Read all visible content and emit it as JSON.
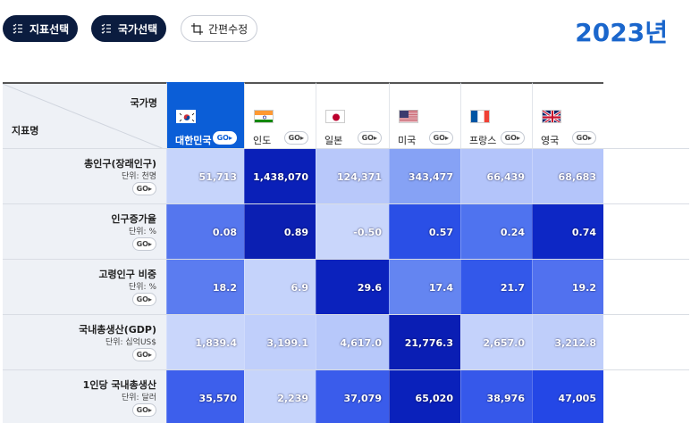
{
  "buttons": {
    "indicator": "지표선택",
    "country": "국가선택",
    "edit": "간편수정"
  },
  "year": "2023년",
  "header": {
    "country_label": "국가명",
    "indicator_label": "지표명"
  },
  "go_label": "GO",
  "countries": [
    {
      "name": "대한민국",
      "flag": "kr",
      "active": true
    },
    {
      "name": "인도",
      "flag": "in",
      "active": false
    },
    {
      "name": "일본",
      "flag": "jp",
      "active": false
    },
    {
      "name": "미국",
      "flag": "us",
      "active": false
    },
    {
      "name": "프랑스",
      "flag": "fr",
      "active": false
    },
    {
      "name": "영국",
      "flag": "gb",
      "active": false
    }
  ],
  "rows": [
    {
      "name": "총인구(장래인구)",
      "unit": "단위: 천명",
      "values": [
        "51,713",
        "1,438,070",
        "124,371",
        "343,477",
        "66,439",
        "68,683"
      ],
      "colors": [
        "#c6d4fb",
        "#0a20b8",
        "#b8c8fa",
        "#86a2f5",
        "#b3c4fa",
        "#b4c5fa"
      ]
    },
    {
      "name": "인구증가율",
      "unit": "단위: %",
      "values": [
        "0.08",
        "0.89",
        "-0.50",
        "0.57",
        "0.24",
        "0.74"
      ],
      "colors": [
        "#5576ee",
        "#0b1fb2",
        "#c9d6fb",
        "#2a4fe6",
        "#4f73ef",
        "#0d27c5"
      ]
    },
    {
      "name": "고령인구 비중",
      "unit": "단위: %",
      "values": [
        "18.2",
        "6.9",
        "29.6",
        "17.4",
        "21.7",
        "19.2"
      ],
      "colors": [
        "#5b7cf0",
        "#c5d3fb",
        "#0b22bd",
        "#6485f1",
        "#3358ea",
        "#5171ef"
      ]
    },
    {
      "name": "국내총생산(GDP)",
      "unit": "단위: 십억US$",
      "values": [
        "1,839.4",
        "3,199.1",
        "4,617.0",
        "21,776.3",
        "2,657.0",
        "3,212.8"
      ],
      "colors": [
        "#c9d6fb",
        "#c0cffb",
        "#b7c8fa",
        "#0a1eb4",
        "#c4d2fb",
        "#bfcefa"
      ]
    },
    {
      "name": "1인당 국내총생산",
      "unit": "단위: 달러",
      "values": [
        "35,570",
        "2,239",
        "37,079",
        "65,020",
        "38,976",
        "47,005"
      ],
      "colors": [
        "#3d5fec",
        "#c6d4fb",
        "#3a5ceb",
        "#0a21bb",
        "#3658ea",
        "#2447e6"
      ]
    }
  ]
}
